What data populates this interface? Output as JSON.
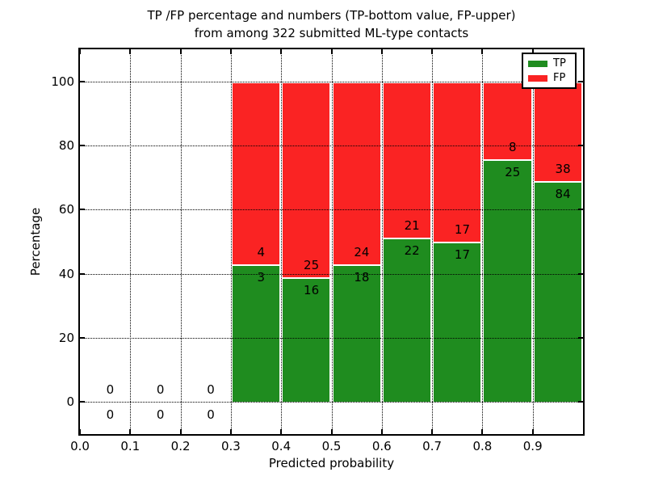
{
  "chart_data": {
    "type": "bar",
    "stacked": true,
    "title": "TP /FP percentage and numbers (TP-bottom value, FP-upper) from among 322 submitted ML-type contacts",
    "title_line1": "TP /FP percentage and numbers (TP-bottom value, FP-upper)",
    "title_line2": "from among 322 submitted ML-type contacts",
    "xlabel": "Predicted probability",
    "ylabel": "Percentage",
    "xlim": [
      0.0,
      1.0
    ],
    "ylim": [
      -10,
      110
    ],
    "bin_width": 0.1,
    "grid": "dotted",
    "background": "#ffffff",
    "axis_color": "#000000",
    "bar_edge_color": "#ffffff",
    "total_contacts": 322,
    "xticks": [
      {
        "value": 0.0,
        "label": "0.0"
      },
      {
        "value": 0.1,
        "label": "0.1"
      },
      {
        "value": 0.2,
        "label": "0.2"
      },
      {
        "value": 0.3,
        "label": "0.3"
      },
      {
        "value": 0.4,
        "label": "0.4"
      },
      {
        "value": 0.5,
        "label": "0.5"
      },
      {
        "value": 0.6,
        "label": "0.6"
      },
      {
        "value": 0.7,
        "label": "0.7"
      },
      {
        "value": 0.8,
        "label": "0.8"
      },
      {
        "value": 0.9,
        "label": "0.9"
      }
    ],
    "yticks": [
      {
        "value": 0,
        "label": "0"
      },
      {
        "value": 20,
        "label": "20"
      },
      {
        "value": 40,
        "label": "40"
      },
      {
        "value": 60,
        "label": "60"
      },
      {
        "value": 80,
        "label": "80"
      },
      {
        "value": 100,
        "label": "100"
      }
    ],
    "categories": [
      "0.0-0.1",
      "0.1-0.2",
      "0.2-0.3",
      "0.3-0.4",
      "0.4-0.5",
      "0.5-0.6",
      "0.6-0.7",
      "0.7-0.8",
      "0.8-0.9",
      "0.9-1.0"
    ],
    "series": [
      {
        "name": "TP",
        "color": "#1f8c1f",
        "values": [
          0,
          0,
          0,
          3,
          16,
          18,
          22,
          17,
          25,
          84
        ]
      },
      {
        "name": "FP",
        "color": "#fa2323",
        "values": [
          0,
          0,
          0,
          4,
          25,
          24,
          21,
          17,
          8,
          38
        ]
      }
    ],
    "tp_percent": [
      null,
      null,
      null,
      42.86,
      39.02,
      42.86,
      51.16,
      50.0,
      75.76,
      68.85
    ],
    "label_note": "numbers printed on bars are raw counts; TP count below the boundary, FP count above",
    "legend": {
      "position": "upper right",
      "entries": [
        {
          "label": "TP",
          "color": "#1f8c1f"
        },
        {
          "label": "FP",
          "color": "#fa2323"
        }
      ]
    }
  }
}
